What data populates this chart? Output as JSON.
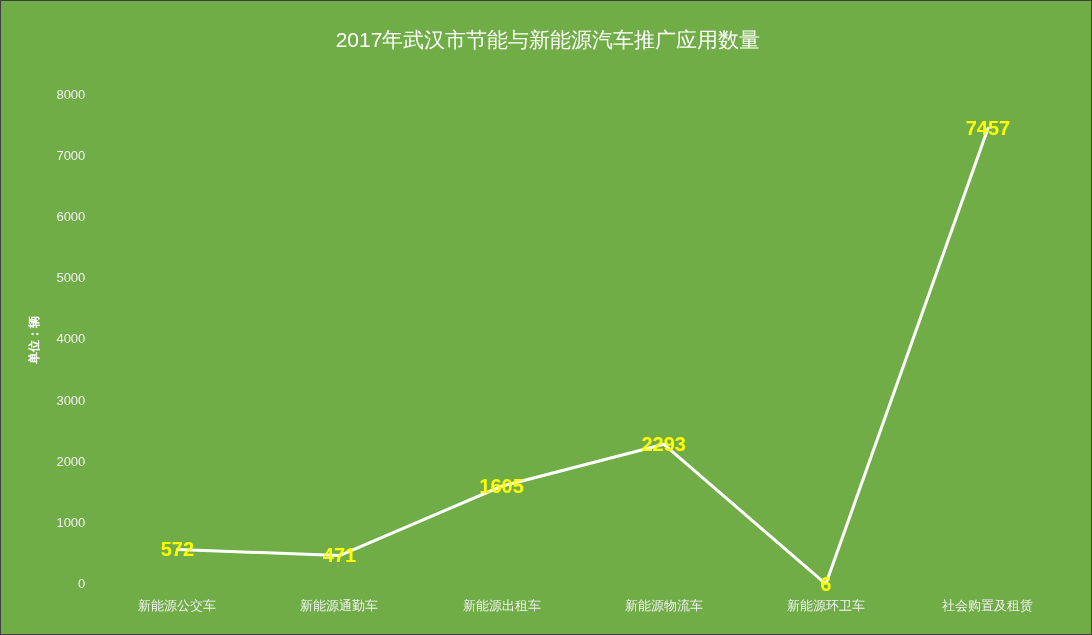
{
  "chart_data": {
    "type": "line",
    "title": "2017年武汉市节能与新能源汽车推广应用数量",
    "ylabel": "单位：辆",
    "categories": [
      "新能源公交车",
      "新能源通勤车",
      "新能源出租车",
      "新能源物流车",
      "新能源环卫车",
      "社会购置及租赁"
    ],
    "series": [
      {
        "color": "#ffffff",
        "values": [
          572,
          471,
          1605,
          2293,
          6,
          7457
        ]
      }
    ],
    "ylim": [
      0,
      8000
    ],
    "yticks": [
      0,
      1000,
      2000,
      3000,
      4000,
      5000,
      6000,
      7000,
      8000
    ],
    "data_labels": true,
    "legend": false,
    "line_style": "solid",
    "grid": false
  }
}
